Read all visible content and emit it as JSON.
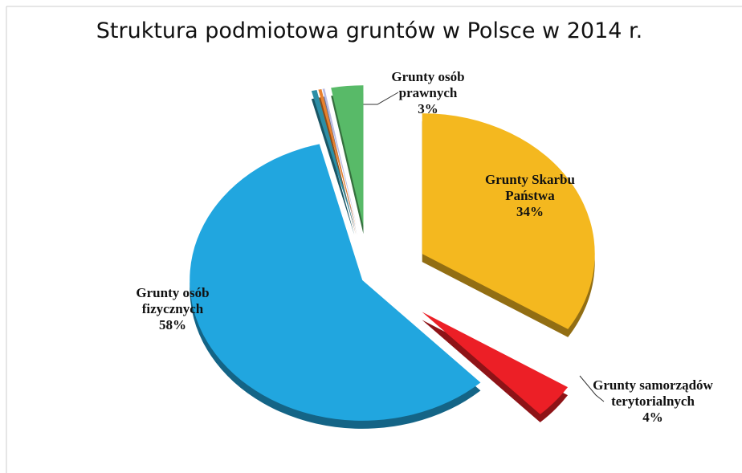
{
  "chart_data": {
    "type": "pie",
    "title": "Struktura podmiotowa gruntów w Polsce w 2014 r.",
    "categories": [
      "Grunty Skarbu Państwa",
      "Grunty samorządów terytorialnych",
      "Grunty osób fizycznych",
      null,
      null,
      null,
      "Grunty osób prawnych"
    ],
    "values": [
      34,
      4,
      58,
      0.5,
      0.3,
      0.2,
      3
    ],
    "value_labels": [
      "34%",
      "4%",
      "58%",
      null,
      null,
      null,
      "3%"
    ],
    "colors": [
      "#f4b81f",
      "#ec1f26",
      "#21a6df",
      "#2b8ea6",
      "#e8812c",
      "#b9bbe2",
      "#58ba68"
    ]
  }
}
